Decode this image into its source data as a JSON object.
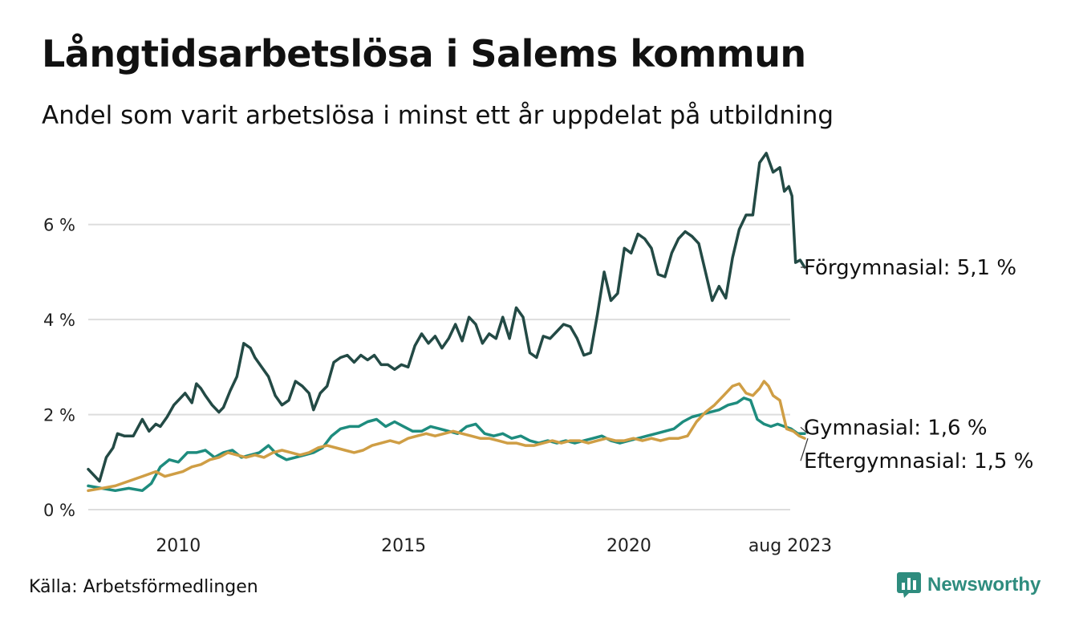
{
  "title": "Långtidsarbetslösa i Salems kommun",
  "subtitle": "Andel som varit arbetslösa i minst ett år uppdelat på utbildning",
  "source": "Källa: Arbetsförmedlingen",
  "brand": {
    "name": "Newsworthy",
    "icon": "newsworthy-logo-icon",
    "color": "#2e8c7e"
  },
  "chart_data": {
    "type": "line",
    "x_range": [
      2008.0,
      2023.58
    ],
    "ylim": [
      0,
      7.6
    ],
    "grid": true,
    "y_ticks": [
      {
        "value": 0,
        "label": "0 %"
      },
      {
        "value": 2,
        "label": "2 %"
      },
      {
        "value": 4,
        "label": "4 %"
      },
      {
        "value": 6,
        "label": "6 %"
      }
    ],
    "x_ticks": [
      {
        "value": 2010,
        "label": "2010"
      },
      {
        "value": 2015,
        "label": "2015"
      },
      {
        "value": 2020,
        "label": "2020"
      },
      {
        "value": 2023.58,
        "label": "aug 2023"
      }
    ],
    "series": [
      {
        "name": "Förgymnasial",
        "end_label": "Förgymnasial: 5,1 %",
        "color": "#234a45",
        "points": [
          [
            2008.0,
            0.85
          ],
          [
            2008.25,
            0.6
          ],
          [
            2008.4,
            1.1
          ],
          [
            2008.55,
            1.3
          ],
          [
            2008.65,
            1.6
          ],
          [
            2008.8,
            1.55
          ],
          [
            2009.0,
            1.55
          ],
          [
            2009.2,
            1.9
          ],
          [
            2009.35,
            1.65
          ],
          [
            2009.5,
            1.8
          ],
          [
            2009.6,
            1.75
          ],
          [
            2009.75,
            1.95
          ],
          [
            2009.9,
            2.2
          ],
          [
            2010.0,
            2.3
          ],
          [
            2010.15,
            2.45
          ],
          [
            2010.3,
            2.25
          ],
          [
            2010.4,
            2.65
          ],
          [
            2010.5,
            2.55
          ],
          [
            2010.6,
            2.4
          ],
          [
            2010.75,
            2.2
          ],
          [
            2010.9,
            2.05
          ],
          [
            2011.0,
            2.15
          ],
          [
            2011.15,
            2.5
          ],
          [
            2011.3,
            2.8
          ],
          [
            2011.45,
            3.5
          ],
          [
            2011.6,
            3.4
          ],
          [
            2011.7,
            3.2
          ],
          [
            2011.85,
            3.0
          ],
          [
            2012.0,
            2.8
          ],
          [
            2012.15,
            2.4
          ],
          [
            2012.3,
            2.2
          ],
          [
            2012.45,
            2.3
          ],
          [
            2012.6,
            2.7
          ],
          [
            2012.75,
            2.6
          ],
          [
            2012.9,
            2.45
          ],
          [
            2013.0,
            2.1
          ],
          [
            2013.15,
            2.45
          ],
          [
            2013.3,
            2.6
          ],
          [
            2013.45,
            3.1
          ],
          [
            2013.6,
            3.2
          ],
          [
            2013.75,
            3.25
          ],
          [
            2013.9,
            3.1
          ],
          [
            2014.05,
            3.25
          ],
          [
            2014.2,
            3.15
          ],
          [
            2014.35,
            3.25
          ],
          [
            2014.5,
            3.05
          ],
          [
            2014.65,
            3.05
          ],
          [
            2014.8,
            2.95
          ],
          [
            2014.95,
            3.05
          ],
          [
            2015.1,
            3.0
          ],
          [
            2015.25,
            3.45
          ],
          [
            2015.4,
            3.7
          ],
          [
            2015.55,
            3.5
          ],
          [
            2015.7,
            3.65
          ],
          [
            2015.85,
            3.4
          ],
          [
            2016.0,
            3.6
          ],
          [
            2016.15,
            3.9
          ],
          [
            2016.3,
            3.55
          ],
          [
            2016.45,
            4.05
          ],
          [
            2016.6,
            3.9
          ],
          [
            2016.75,
            3.5
          ],
          [
            2016.9,
            3.7
          ],
          [
            2017.05,
            3.6
          ],
          [
            2017.2,
            4.05
          ],
          [
            2017.35,
            3.6
          ],
          [
            2017.5,
            4.25
          ],
          [
            2017.65,
            4.05
          ],
          [
            2017.8,
            3.3
          ],
          [
            2017.95,
            3.2
          ],
          [
            2018.1,
            3.65
          ],
          [
            2018.25,
            3.6
          ],
          [
            2018.4,
            3.75
          ],
          [
            2018.55,
            3.9
          ],
          [
            2018.7,
            3.85
          ],
          [
            2018.85,
            3.6
          ],
          [
            2019.0,
            3.25
          ],
          [
            2019.15,
            3.3
          ],
          [
            2019.3,
            4.1
          ],
          [
            2019.45,
            5.0
          ],
          [
            2019.6,
            4.4
          ],
          [
            2019.75,
            4.55
          ],
          [
            2019.9,
            5.5
          ],
          [
            2020.05,
            5.4
          ],
          [
            2020.2,
            5.8
          ],
          [
            2020.35,
            5.7
          ],
          [
            2020.5,
            5.5
          ],
          [
            2020.65,
            4.95
          ],
          [
            2020.8,
            4.9
          ],
          [
            2020.95,
            5.4
          ],
          [
            2021.1,
            5.7
          ],
          [
            2021.25,
            5.85
          ],
          [
            2021.4,
            5.75
          ],
          [
            2021.55,
            5.6
          ],
          [
            2021.7,
            5.0
          ],
          [
            2021.85,
            4.4
          ],
          [
            2022.0,
            4.7
          ],
          [
            2022.15,
            4.45
          ],
          [
            2022.3,
            5.3
          ],
          [
            2022.45,
            5.9
          ],
          [
            2022.6,
            6.2
          ],
          [
            2022.75,
            6.2
          ],
          [
            2022.9,
            7.3
          ],
          [
            2023.05,
            7.5
          ],
          [
            2023.2,
            7.1
          ],
          [
            2023.35,
            7.2
          ],
          [
            2023.45,
            6.7
          ],
          [
            2023.55,
            6.8
          ],
          [
            2023.62,
            6.6
          ],
          [
            2023.7,
            5.2
          ],
          [
            2023.8,
            5.25
          ],
          [
            2023.9,
            5.1
          ]
        ]
      },
      {
        "name": "Gymnasial",
        "end_label": "Gymnasial: 1,6 %",
        "color": "#1e8c7e",
        "points": [
          [
            2008.0,
            0.5
          ],
          [
            2008.3,
            0.45
          ],
          [
            2008.6,
            0.4
          ],
          [
            2008.9,
            0.45
          ],
          [
            2009.2,
            0.4
          ],
          [
            2009.4,
            0.55
          ],
          [
            2009.6,
            0.9
          ],
          [
            2009.8,
            1.05
          ],
          [
            2010.0,
            1.0
          ],
          [
            2010.2,
            1.2
          ],
          [
            2010.4,
            1.2
          ],
          [
            2010.6,
            1.25
          ],
          [
            2010.8,
            1.1
          ],
          [
            2011.0,
            1.2
          ],
          [
            2011.2,
            1.25
          ],
          [
            2011.4,
            1.1
          ],
          [
            2011.6,
            1.15
          ],
          [
            2011.8,
            1.2
          ],
          [
            2012.0,
            1.35
          ],
          [
            2012.2,
            1.15
          ],
          [
            2012.4,
            1.05
          ],
          [
            2012.6,
            1.1
          ],
          [
            2012.8,
            1.15
          ],
          [
            2013.0,
            1.2
          ],
          [
            2013.2,
            1.3
          ],
          [
            2013.4,
            1.55
          ],
          [
            2013.6,
            1.7
          ],
          [
            2013.8,
            1.75
          ],
          [
            2014.0,
            1.75
          ],
          [
            2014.2,
            1.85
          ],
          [
            2014.4,
            1.9
          ],
          [
            2014.6,
            1.75
          ],
          [
            2014.8,
            1.85
          ],
          [
            2015.0,
            1.75
          ],
          [
            2015.2,
            1.65
          ],
          [
            2015.4,
            1.65
          ],
          [
            2015.6,
            1.75
          ],
          [
            2015.8,
            1.7
          ],
          [
            2016.0,
            1.65
          ],
          [
            2016.2,
            1.6
          ],
          [
            2016.4,
            1.75
          ],
          [
            2016.6,
            1.8
          ],
          [
            2016.8,
            1.6
          ],
          [
            2017.0,
            1.55
          ],
          [
            2017.2,
            1.6
          ],
          [
            2017.4,
            1.5
          ],
          [
            2017.6,
            1.55
          ],
          [
            2017.8,
            1.45
          ],
          [
            2018.0,
            1.4
          ],
          [
            2018.2,
            1.45
          ],
          [
            2018.4,
            1.4
          ],
          [
            2018.6,
            1.45
          ],
          [
            2018.8,
            1.4
          ],
          [
            2019.0,
            1.45
          ],
          [
            2019.2,
            1.5
          ],
          [
            2019.4,
            1.55
          ],
          [
            2019.6,
            1.45
          ],
          [
            2019.8,
            1.4
          ],
          [
            2020.0,
            1.45
          ],
          [
            2020.2,
            1.5
          ],
          [
            2020.4,
            1.55
          ],
          [
            2020.6,
            1.6
          ],
          [
            2020.8,
            1.65
          ],
          [
            2021.0,
            1.7
          ],
          [
            2021.2,
            1.85
          ],
          [
            2021.4,
            1.95
          ],
          [
            2021.6,
            2.0
          ],
          [
            2021.8,
            2.05
          ],
          [
            2022.0,
            2.1
          ],
          [
            2022.2,
            2.2
          ],
          [
            2022.4,
            2.25
          ],
          [
            2022.55,
            2.35
          ],
          [
            2022.7,
            2.3
          ],
          [
            2022.85,
            1.9
          ],
          [
            2023.0,
            1.8
          ],
          [
            2023.15,
            1.75
          ],
          [
            2023.3,
            1.8
          ],
          [
            2023.45,
            1.75
          ],
          [
            2023.6,
            1.7
          ],
          [
            2023.75,
            1.6
          ],
          [
            2023.9,
            1.6
          ]
        ]
      },
      {
        "name": "Eftergymnasial",
        "end_label": "Eftergymnasial: 1,5 %",
        "color": "#cf9e45",
        "points": [
          [
            2008.0,
            0.4
          ],
          [
            2008.3,
            0.45
          ],
          [
            2008.6,
            0.5
          ],
          [
            2008.9,
            0.6
          ],
          [
            2009.2,
            0.7
          ],
          [
            2009.5,
            0.8
          ],
          [
            2009.7,
            0.7
          ],
          [
            2009.9,
            0.75
          ],
          [
            2010.1,
            0.8
          ],
          [
            2010.3,
            0.9
          ],
          [
            2010.5,
            0.95
          ],
          [
            2010.7,
            1.05
          ],
          [
            2010.9,
            1.1
          ],
          [
            2011.1,
            1.2
          ],
          [
            2011.3,
            1.15
          ],
          [
            2011.5,
            1.1
          ],
          [
            2011.7,
            1.15
          ],
          [
            2011.9,
            1.1
          ],
          [
            2012.1,
            1.2
          ],
          [
            2012.3,
            1.25
          ],
          [
            2012.5,
            1.2
          ],
          [
            2012.7,
            1.15
          ],
          [
            2012.9,
            1.2
          ],
          [
            2013.1,
            1.3
          ],
          [
            2013.3,
            1.35
          ],
          [
            2013.5,
            1.3
          ],
          [
            2013.7,
            1.25
          ],
          [
            2013.9,
            1.2
          ],
          [
            2014.1,
            1.25
          ],
          [
            2014.3,
            1.35
          ],
          [
            2014.5,
            1.4
          ],
          [
            2014.7,
            1.45
          ],
          [
            2014.9,
            1.4
          ],
          [
            2015.1,
            1.5
          ],
          [
            2015.3,
            1.55
          ],
          [
            2015.5,
            1.6
          ],
          [
            2015.7,
            1.55
          ],
          [
            2015.9,
            1.6
          ],
          [
            2016.1,
            1.65
          ],
          [
            2016.3,
            1.6
          ],
          [
            2016.5,
            1.55
          ],
          [
            2016.7,
            1.5
          ],
          [
            2016.9,
            1.5
          ],
          [
            2017.1,
            1.45
          ],
          [
            2017.3,
            1.4
          ],
          [
            2017.5,
            1.4
          ],
          [
            2017.7,
            1.35
          ],
          [
            2017.9,
            1.35
          ],
          [
            2018.1,
            1.4
          ],
          [
            2018.3,
            1.45
          ],
          [
            2018.5,
            1.4
          ],
          [
            2018.7,
            1.45
          ],
          [
            2018.9,
            1.45
          ],
          [
            2019.1,
            1.4
          ],
          [
            2019.3,
            1.45
          ],
          [
            2019.5,
            1.5
          ],
          [
            2019.7,
            1.45
          ],
          [
            2019.9,
            1.45
          ],
          [
            2020.1,
            1.5
          ],
          [
            2020.3,
            1.45
          ],
          [
            2020.5,
            1.5
          ],
          [
            2020.7,
            1.45
          ],
          [
            2020.9,
            1.5
          ],
          [
            2021.1,
            1.5
          ],
          [
            2021.3,
            1.55
          ],
          [
            2021.5,
            1.85
          ],
          [
            2021.7,
            2.05
          ],
          [
            2021.9,
            2.2
          ],
          [
            2022.1,
            2.4
          ],
          [
            2022.3,
            2.6
          ],
          [
            2022.45,
            2.65
          ],
          [
            2022.6,
            2.45
          ],
          [
            2022.75,
            2.4
          ],
          [
            2022.9,
            2.55
          ],
          [
            2023.0,
            2.7
          ],
          [
            2023.1,
            2.6
          ],
          [
            2023.2,
            2.4
          ],
          [
            2023.35,
            2.3
          ],
          [
            2023.5,
            1.7
          ],
          [
            2023.65,
            1.65
          ],
          [
            2023.78,
            1.55
          ],
          [
            2023.9,
            1.5
          ]
        ]
      }
    ]
  }
}
